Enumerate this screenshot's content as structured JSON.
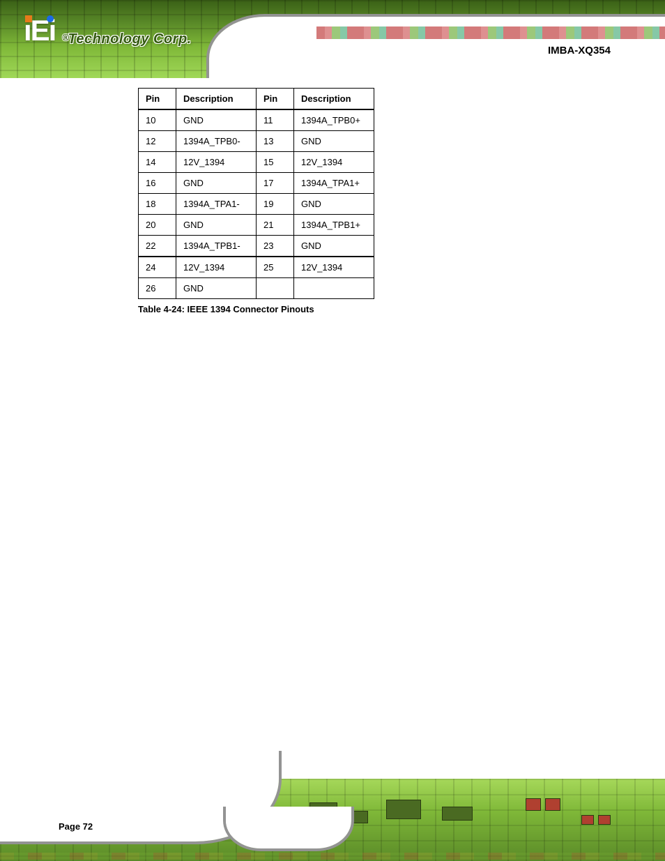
{
  "header": {
    "logo_text": "iEi",
    "tagline_reg": "®",
    "tagline": "Technology Corp.",
    "title": "IMBA-XQ354"
  },
  "table": {
    "headers": [
      "Pin",
      "Description",
      "Pin",
      "Description"
    ],
    "rows": [
      [
        "10",
        "GND",
        "11",
        "1394A_TPB0+"
      ],
      [
        "12",
        "1394A_TPB0-",
        "13",
        "GND"
      ],
      [
        "14",
        "12V_1394",
        "15",
        "12V_1394"
      ],
      [
        "16",
        "GND",
        "17",
        "1394A_TPA1+"
      ],
      [
        "18",
        "1394A_TPA1-",
        "19",
        "GND"
      ],
      [
        "20",
        "GND",
        "21",
        "1394A_TPB1+"
      ],
      [
        "22",
        "1394A_TPB1-",
        "23",
        "GND"
      ],
      [
        "24",
        "12V_1394",
        "25",
        "12V_1394"
      ],
      [
        "26",
        "GND",
        "",
        ""
      ]
    ],
    "sep_after_row_index": 6,
    "caption": "Table 4-24: IEEE 1394 Connector Pinouts"
  },
  "footer": {
    "page_number": "Page 72"
  },
  "colors": {
    "banner_green_dark": "#3a6016",
    "banner_green_light": "#a0d858",
    "outline_grey": "#939393",
    "text": "#000000",
    "table_border": "#000000"
  }
}
